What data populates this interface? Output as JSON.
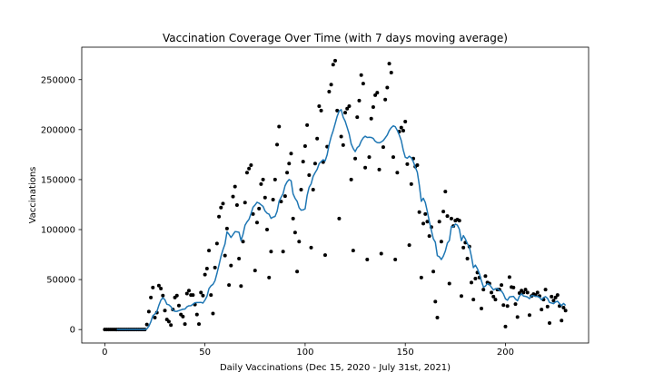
{
  "chart_data": {
    "type": "scatter",
    "title": "Vaccination Coverage Over Time (with 7 days moving average)",
    "xlabel": "Daily Vaccinations (Dec 15, 2020 - July 31st, 2021)",
    "ylabel": "Vaccinations",
    "xlim": [
      -11.5,
      241.5
    ],
    "ylim": [
      -13450,
      282450
    ],
    "xticks": [
      0,
      50,
      100,
      150,
      200
    ],
    "xticklabels": [
      "0",
      "50",
      "100",
      "150",
      "200"
    ],
    "yticks": [
      0,
      50000,
      100000,
      150000,
      200000,
      250000
    ],
    "yticklabels": [
      "0",
      "50000",
      "100000",
      "150000",
      "200000",
      "250000"
    ],
    "grid": false,
    "x": [
      0,
      1,
      2,
      3,
      4,
      5,
      6,
      7,
      8,
      9,
      10,
      11,
      12,
      13,
      14,
      15,
      16,
      17,
      18,
      19,
      20,
      21,
      22,
      23,
      24,
      25,
      26,
      27,
      28,
      29,
      30,
      31,
      32,
      33,
      34,
      35,
      36,
      37,
      38,
      39,
      40,
      41,
      42,
      43,
      44,
      45,
      46,
      47,
      48,
      49,
      50,
      51,
      52,
      53,
      54,
      55,
      56,
      57,
      58,
      59,
      60,
      61,
      62,
      63,
      64,
      65,
      66,
      67,
      68,
      69,
      70,
      71,
      72,
      73,
      74,
      75,
      76,
      77,
      78,
      79,
      80,
      81,
      82,
      83,
      84,
      85,
      86,
      87,
      88,
      89,
      90,
      91,
      92,
      93,
      94,
      95,
      96,
      97,
      98,
      99,
      100,
      101,
      102,
      103,
      104,
      105,
      106,
      107,
      108,
      109,
      110,
      111,
      112,
      113,
      114,
      115,
      116,
      117,
      118,
      119,
      120,
      121,
      122,
      123,
      124,
      125,
      126,
      127,
      128,
      129,
      130,
      131,
      132,
      133,
      134,
      135,
      136,
      137,
      138,
      139,
      140,
      141,
      142,
      143,
      144,
      145,
      146,
      147,
      148,
      149,
      150,
      151,
      152,
      153,
      154,
      155,
      156,
      157,
      158,
      159,
      160,
      161,
      162,
      163,
      164,
      165,
      166,
      167,
      168,
      169,
      170,
      171,
      172,
      173,
      174,
      175,
      176,
      177,
      178,
      179,
      180,
      181,
      182,
      183,
      184,
      185,
      186,
      187,
      188,
      189,
      190,
      191,
      192,
      193,
      194,
      195,
      196,
      197,
      198,
      199,
      200,
      201,
      202,
      203,
      204,
      205,
      206,
      207,
      208,
      209,
      210,
      211,
      212,
      213,
      214,
      215,
      216,
      217,
      218,
      219,
      220,
      221,
      222,
      223,
      224,
      225,
      226,
      227,
      228,
      229,
      230
    ],
    "y": [
      0,
      0,
      0,
      0,
      0,
      0,
      0,
      0,
      0,
      0,
      0,
      0,
      0,
      0,
      0,
      0,
      0,
      0,
      0,
      0,
      0,
      5000,
      18000,
      32000,
      42000,
      12000,
      17000,
      44000,
      41000,
      34000,
      19000,
      10000,
      8000,
      4500,
      20000,
      32000,
      34000,
      24000,
      15000,
      13000,
      5500,
      36000,
      39000,
      34500,
      34500,
      25000,
      15000,
      5500,
      37000,
      34000,
      55000,
      61000,
      79000,
      34500,
      16000,
      62000,
      86000,
      113000,
      122000,
      126000,
      74000,
      101000,
      44500,
      64000,
      133000,
      143000,
      124500,
      71000,
      43500,
      88000,
      127000,
      157000,
      161000,
      164500,
      115500,
      59000,
      107000,
      121000,
      145500,
      150000,
      132000,
      100000,
      52000,
      78000,
      130000,
      150000,
      185000,
      203000,
      128000,
      78000,
      133500,
      157000,
      166000,
      176000,
      111000,
      97000,
      58000,
      88000,
      140000,
      168000,
      183500,
      204500,
      154500,
      82000,
      140000,
      166000,
      191000,
      223500,
      219000,
      167500,
      74500,
      183000,
      238000,
      245000,
      265000,
      269000,
      219000,
      111000,
      193000,
      184500,
      217000,
      221000,
      223500,
      150000,
      79000,
      171000,
      212500,
      229000,
      254500,
      246000,
      162000,
      70000,
      172500,
      211000,
      222500,
      234500,
      237000,
      160000,
      76000,
      182500,
      230000,
      242000,
      266000,
      257000,
      172500,
      70000,
      157000,
      198000,
      202000,
      199000,
      208000,
      165500,
      84500,
      145500,
      171000,
      163000,
      164500,
      117500,
      52000,
      106000,
      115500,
      108000,
      93500,
      102500,
      58000,
      28000,
      12000,
      108000,
      88000,
      118000,
      138000,
      113500,
      46000,
      111000,
      103500,
      109000,
      110000,
      109000,
      33500,
      82000,
      87000,
      71000,
      83000,
      47000,
      30000,
      51000,
      57000,
      52000,
      21000,
      40000,
      53500,
      47000,
      46000,
      37000,
      33000,
      30000,
      40000,
      40000,
      44500,
      24500,
      3000,
      23500,
      52500,
      42500,
      42000,
      25500,
      12500,
      36500,
      39000,
      37000,
      40000,
      37000,
      14500,
      33500,
      35500,
      34500,
      37000,
      33500,
      20000,
      30000,
      40000,
      23000,
      6500,
      33000,
      29000,
      32000,
      34500,
      23500,
      9000,
      22000,
      19000
    ],
    "moving_average": {
      "window_days": 7
    },
    "colors": {
      "background": "#ffffff",
      "points": "#000000",
      "moving_average": "#1f77b4"
    }
  }
}
